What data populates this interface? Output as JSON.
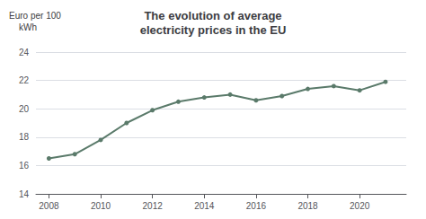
{
  "chart_data": {
    "type": "line",
    "title": "The evolution of average\nelectricity prices in the EU",
    "ylabel": "Euro per 100\n    kWh",
    "x": [
      2008,
      2009,
      2010,
      2011,
      2012,
      2013,
      2014,
      2015,
      2016,
      2017,
      2018,
      2019,
      2020,
      2021
    ],
    "values": [
      16.5,
      16.8,
      17.8,
      19.0,
      19.9,
      20.5,
      20.8,
      21.0,
      20.6,
      20.9,
      21.4,
      21.6,
      21.3,
      21.9
    ],
    "color": "#5a7a6a",
    "marker": "o",
    "xlim": [
      2007.5,
      2021.8
    ],
    "xticks": [
      2008,
      2010,
      2012,
      2014,
      2016,
      2018,
      2020
    ],
    "ylim": [
      14,
      24
    ],
    "yticks": [
      14,
      16,
      18,
      20,
      22,
      24
    ],
    "grid": true
  }
}
